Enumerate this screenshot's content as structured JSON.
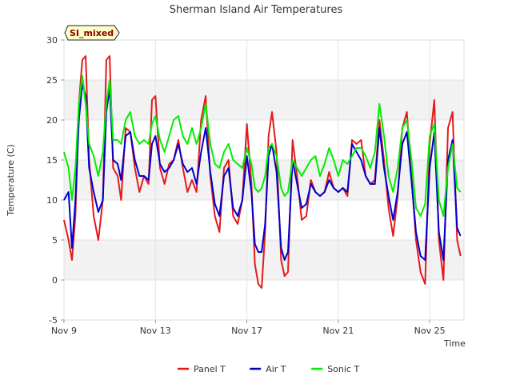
{
  "chart_data": {
    "type": "line",
    "title": "Sherman Island Air Temperatures",
    "xlabel": "Time",
    "ylabel": "Temperature (C)",
    "badge": "SI_mixed",
    "ylim": [
      -5,
      30
    ],
    "xlim": [
      9,
      26.5
    ],
    "yticks": [
      -5,
      0,
      5,
      10,
      15,
      20,
      25,
      30
    ],
    "xticks": [
      {
        "value": 9,
        "label": "Nov 9"
      },
      {
        "value": 13,
        "label": "Nov 13"
      },
      {
        "value": 17,
        "label": "Nov 17"
      },
      {
        "value": 21,
        "label": "Nov 21"
      },
      {
        "value": 25,
        "label": "Nov 25"
      }
    ],
    "grid": true,
    "legend": "bottom",
    "series": [
      {
        "name": "Panel T",
        "color": "#e31a1c",
        "x": [
          9.0,
          9.2,
          9.35,
          9.5,
          9.65,
          9.8,
          9.95,
          10.1,
          10.3,
          10.5,
          10.7,
          10.85,
          11.0,
          11.15,
          11.35,
          11.5,
          11.7,
          11.9,
          12.1,
          12.3,
          12.5,
          12.7,
          12.85,
          13.0,
          13.2,
          13.4,
          13.6,
          13.8,
          14.0,
          14.2,
          14.4,
          14.6,
          14.8,
          15.0,
          15.2,
          15.4,
          15.6,
          15.8,
          16.0,
          16.2,
          16.4,
          16.6,
          16.8,
          17.0,
          17.2,
          17.35,
          17.5,
          17.65,
          17.8,
          17.95,
          18.1,
          18.3,
          18.5,
          18.65,
          18.8,
          19.0,
          19.2,
          19.4,
          19.6,
          19.8,
          20.0,
          20.2,
          20.4,
          20.6,
          20.8,
          21.0,
          21.2,
          21.4,
          21.6,
          21.8,
          22.0,
          22.2,
          22.4,
          22.6,
          22.8,
          23.0,
          23.2,
          23.4,
          23.6,
          23.8,
          24.0,
          24.2,
          24.4,
          24.6,
          24.8,
          25.0,
          25.2,
          25.4,
          25.6,
          25.8,
          26.0,
          26.2,
          26.35
        ],
        "y": [
          7.5,
          5.0,
          2.5,
          8.0,
          22.0,
          27.5,
          28.0,
          15.0,
          8.0,
          5.0,
          10.0,
          27.5,
          28.0,
          14.0,
          13.0,
          10.0,
          19.0,
          18.5,
          14.0,
          11.0,
          13.0,
          12.0,
          22.5,
          23.0,
          14.0,
          12.0,
          14.5,
          15.0,
          17.5,
          14.0,
          11.0,
          12.5,
          11.0,
          20.0,
          23.0,
          13.0,
          8.0,
          6.0,
          14.0,
          15.0,
          8.0,
          7.0,
          10.0,
          19.5,
          12.0,
          2.0,
          -0.5,
          -1.0,
          6.0,
          18.0,
          21.0,
          16.0,
          2.5,
          0.5,
          1.0,
          17.5,
          13.0,
          7.5,
          8.0,
          12.5,
          11.0,
          10.5,
          11.0,
          13.5,
          11.5,
          11.0,
          11.5,
          10.5,
          17.5,
          17.0,
          17.5,
          13.0,
          12.0,
          12.5,
          20.0,
          15.0,
          9.0,
          5.5,
          10.5,
          19.0,
          21.0,
          13.0,
          5.0,
          1.0,
          -0.5,
          17.0,
          22.5,
          5.0,
          0.0,
          19.0,
          21.0,
          5.0,
          3.0
        ]
      },
      {
        "name": "Air T",
        "color": "#0000cc",
        "x": [
          9.0,
          9.2,
          9.35,
          9.5,
          9.65,
          9.8,
          9.95,
          10.1,
          10.3,
          10.5,
          10.7,
          10.85,
          11.0,
          11.15,
          11.35,
          11.5,
          11.7,
          11.9,
          12.1,
          12.3,
          12.5,
          12.7,
          12.85,
          13.0,
          13.2,
          13.4,
          13.6,
          13.8,
          14.0,
          14.2,
          14.4,
          14.6,
          14.8,
          15.0,
          15.2,
          15.4,
          15.6,
          15.8,
          16.0,
          16.2,
          16.4,
          16.6,
          16.8,
          17.0,
          17.2,
          17.35,
          17.5,
          17.65,
          17.8,
          17.95,
          18.1,
          18.3,
          18.5,
          18.65,
          18.8,
          19.0,
          19.2,
          19.4,
          19.6,
          19.8,
          20.0,
          20.2,
          20.4,
          20.6,
          20.8,
          21.0,
          21.2,
          21.4,
          21.6,
          21.8,
          22.0,
          22.2,
          22.4,
          22.6,
          22.8,
          23.0,
          23.2,
          23.4,
          23.6,
          23.8,
          24.0,
          24.2,
          24.4,
          24.6,
          24.8,
          25.0,
          25.2,
          25.4,
          25.6,
          25.8,
          26.0,
          26.2,
          26.35
        ],
        "y": [
          10.0,
          11.0,
          4.0,
          10.0,
          20.0,
          24.5,
          23.0,
          14.0,
          11.0,
          8.5,
          10.0,
          21.0,
          24.0,
          15.0,
          14.5,
          12.5,
          18.0,
          18.5,
          15.0,
          13.0,
          13.0,
          12.5,
          17.0,
          18.0,
          14.5,
          13.5,
          14.0,
          15.0,
          17.0,
          14.5,
          13.5,
          14.0,
          12.0,
          16.0,
          19.0,
          13.5,
          9.5,
          8.0,
          13.0,
          14.0,
          9.0,
          8.0,
          10.0,
          15.5,
          11.0,
          4.5,
          3.5,
          3.5,
          7.0,
          15.5,
          17.0,
          13.5,
          4.0,
          2.5,
          3.5,
          15.0,
          12.0,
          9.0,
          9.5,
          12.0,
          11.0,
          10.5,
          11.0,
          12.5,
          11.5,
          11.0,
          11.5,
          11.0,
          17.0,
          16.0,
          15.0,
          13.0,
          12.0,
          12.0,
          19.0,
          14.0,
          10.5,
          7.5,
          11.0,
          17.0,
          18.5,
          12.5,
          6.0,
          3.0,
          2.5,
          14.0,
          18.5,
          6.0,
          2.5,
          15.0,
          17.5,
          6.5,
          5.5
        ]
      },
      {
        "name": "Sonic T",
        "color": "#00ee00",
        "x": [
          9.0,
          9.2,
          9.35,
          9.5,
          9.65,
          9.8,
          9.95,
          10.1,
          10.3,
          10.5,
          10.7,
          10.85,
          11.0,
          11.15,
          11.35,
          11.5,
          11.7,
          11.9,
          12.1,
          12.3,
          12.5,
          12.7,
          12.85,
          13.0,
          13.2,
          13.4,
          13.6,
          13.8,
          14.0,
          14.2,
          14.4,
          14.6,
          14.8,
          15.0,
          15.2,
          15.4,
          15.6,
          15.8,
          16.0,
          16.2,
          16.4,
          16.6,
          16.8,
          17.0,
          17.2,
          17.35,
          17.5,
          17.65,
          17.8,
          17.95,
          18.1,
          18.3,
          18.5,
          18.65,
          18.8,
          19.0,
          19.2,
          19.4,
          19.6,
          19.8,
          20.0,
          20.2,
          20.4,
          20.6,
          20.8,
          21.0,
          21.2,
          21.4,
          21.6,
          21.8,
          22.0,
          22.2,
          22.4,
          22.6,
          22.8,
          23.0,
          23.2,
          23.4,
          23.6,
          23.8,
          24.0,
          24.2,
          24.4,
          24.6,
          24.8,
          25.0,
          25.2,
          25.4,
          25.6,
          25.8,
          26.0,
          26.2,
          26.35
        ],
        "y": [
          16.0,
          14.0,
          10.0,
          14.0,
          22.0,
          25.5,
          22.0,
          17.0,
          15.5,
          13.0,
          16.0,
          22.0,
          25.0,
          17.5,
          17.5,
          17.0,
          20.0,
          21.0,
          18.0,
          17.0,
          17.5,
          17.0,
          19.5,
          20.5,
          17.5,
          16.0,
          18.0,
          20.0,
          20.5,
          18.0,
          17.0,
          19.0,
          17.0,
          19.0,
          22.0,
          17.0,
          14.5,
          14.0,
          16.0,
          17.0,
          15.0,
          14.5,
          14.0,
          16.5,
          14.5,
          11.5,
          11.0,
          11.5,
          13.0,
          16.5,
          17.0,
          15.5,
          11.5,
          10.5,
          11.0,
          15.0,
          14.0,
          13.0,
          14.0,
          15.0,
          15.5,
          13.0,
          14.5,
          16.5,
          15.0,
          13.0,
          15.0,
          14.5,
          15.5,
          16.5,
          16.5,
          15.5,
          14.0,
          16.0,
          22.0,
          18.0,
          13.0,
          11.0,
          14.0,
          19.0,
          20.0,
          15.0,
          9.0,
          8.0,
          9.5,
          18.0,
          19.5,
          10.0,
          8.0,
          14.0,
          17.0,
          11.5,
          11.0
        ]
      }
    ]
  }
}
